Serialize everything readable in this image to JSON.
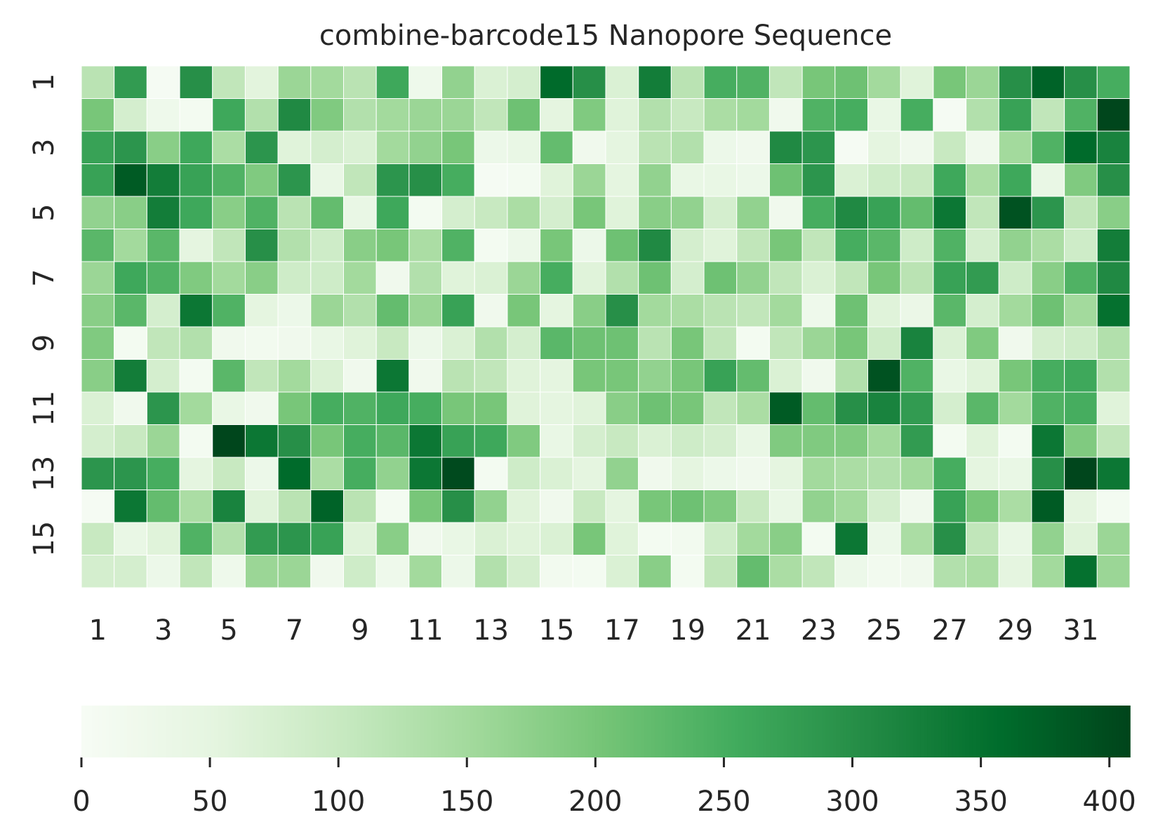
{
  "chart_data": {
    "type": "heatmap",
    "title": "combine-barcode15 Nanopore Sequence",
    "xlabel": "",
    "ylabel": "",
    "colormap": "Greens",
    "color_low": "#f7fcf5",
    "color_high": "#00441b",
    "vmin": 0,
    "vmax": 408,
    "x_categories": [
      1,
      2,
      3,
      4,
      5,
      6,
      7,
      8,
      9,
      10,
      11,
      12,
      13,
      14,
      15,
      16,
      17,
      18,
      19,
      20,
      21,
      22,
      23,
      24,
      25,
      26,
      27,
      28,
      29,
      30,
      31,
      32
    ],
    "x_tick_labels": [
      "1",
      "3",
      "5",
      "7",
      "9",
      "11",
      "13",
      "15",
      "17",
      "19",
      "21",
      "23",
      "25",
      "27",
      "29",
      "31"
    ],
    "y_categories": [
      1,
      2,
      3,
      4,
      5,
      6,
      7,
      8,
      9,
      10,
      11,
      12,
      13,
      14,
      15,
      16
    ],
    "y_tick_labels": [
      "1",
      "3",
      "5",
      "7",
      "9",
      "11",
      "13",
      "15"
    ],
    "colorbar": {
      "position": "bottom",
      "ticks": [
        "0",
        "50",
        "100",
        "150",
        "200",
        "250",
        "300",
        "350",
        "400"
      ]
    },
    "values": [
      [
        120,
        280,
        5,
        300,
        110,
        55,
        160,
        150,
        120,
        260,
        25,
        170,
        70,
        80,
        360,
        300,
        70,
        330,
        120,
        250,
        240,
        110,
        200,
        210,
        150,
        60,
        200,
        160,
        300,
        370,
        300,
        250
      ],
      [
        200,
        80,
        25,
        10,
        260,
        130,
        310,
        190,
        130,
        150,
        160,
        160,
        110,
        210,
        50,
        190,
        60,
        130,
        100,
        140,
        150,
        20,
        240,
        250,
        40,
        250,
        5,
        130,
        270,
        110,
        240,
        405
      ],
      [
        270,
        290,
        180,
        260,
        140,
        290,
        60,
        80,
        70,
        150,
        170,
        200,
        30,
        40,
        220,
        20,
        50,
        120,
        130,
        30,
        20,
        310,
        290,
        5,
        50,
        20,
        100,
        20,
        150,
        240,
        360,
        320
      ],
      [
        270,
        380,
        330,
        270,
        240,
        190,
        290,
        40,
        110,
        290,
        300,
        250,
        5,
        10,
        60,
        160,
        50,
        170,
        40,
        40,
        30,
        210,
        290,
        70,
        90,
        100,
        260,
        140,
        260,
        40,
        190,
        300
      ],
      [
        170,
        180,
        330,
        260,
        180,
        240,
        120,
        220,
        40,
        260,
        10,
        80,
        100,
        140,
        80,
        200,
        60,
        180,
        170,
        80,
        170,
        20,
        250,
        310,
        270,
        220,
        340,
        110,
        390,
        290,
        110,
        180
      ],
      [
        230,
        150,
        230,
        50,
        110,
        300,
        130,
        90,
        180,
        200,
        140,
        240,
        10,
        30,
        200,
        30,
        210,
        310,
        80,
        60,
        110,
        200,
        110,
        250,
        230,
        90,
        240,
        80,
        170,
        140,
        90,
        330
      ],
      [
        160,
        260,
        240,
        190,
        150,
        180,
        90,
        90,
        150,
        20,
        130,
        60,
        70,
        160,
        250,
        60,
        130,
        210,
        80,
        210,
        170,
        110,
        70,
        110,
        200,
        120,
        270,
        280,
        90,
        180,
        240,
        310
      ],
      [
        180,
        230,
        80,
        340,
        240,
        50,
        30,
        160,
        130,
        220,
        160,
        270,
        20,
        200,
        50,
        180,
        300,
        150,
        140,
        120,
        110,
        150,
        25,
        210,
        60,
        35,
        230,
        80,
        150,
        210,
        150,
        350
      ],
      [
        190,
        10,
        110,
        130,
        20,
        15,
        20,
        40,
        60,
        100,
        30,
        70,
        130,
        80,
        230,
        210,
        210,
        120,
        200,
        110,
        10,
        110,
        160,
        200,
        90,
        320,
        70,
        190,
        20,
        80,
        90,
        130
      ],
      [
        180,
        330,
        80,
        10,
        230,
        110,
        150,
        70,
        20,
        340,
        20,
        120,
        110,
        60,
        50,
        200,
        200,
        170,
        200,
        270,
        220,
        70,
        20,
        130,
        390,
        240,
        40,
        60,
        200,
        250,
        260,
        130
      ],
      [
        70,
        20,
        290,
        150,
        40,
        20,
        200,
        250,
        240,
        260,
        250,
        200,
        200,
        60,
        50,
        60,
        180,
        210,
        200,
        110,
        140,
        380,
        220,
        300,
        320,
        280,
        80,
        230,
        150,
        240,
        250,
        60
      ],
      [
        80,
        100,
        160,
        10,
        405,
        340,
        300,
        200,
        250,
        230,
        340,
        270,
        260,
        190,
        40,
        80,
        100,
        70,
        90,
        80,
        40,
        190,
        190,
        190,
        150,
        280,
        10,
        60,
        10,
        340,
        190,
        110
      ],
      [
        290,
        290,
        250,
        50,
        100,
        30,
        360,
        140,
        250,
        170,
        340,
        400,
        10,
        90,
        70,
        50,
        170,
        20,
        50,
        30,
        20,
        50,
        150,
        140,
        130,
        150,
        250,
        50,
        40,
        300,
        405,
        340
      ],
      [
        5,
        340,
        220,
        140,
        320,
        60,
        120,
        370,
        120,
        10,
        200,
        300,
        170,
        60,
        20,
        100,
        50,
        200,
        210,
        190,
        100,
        40,
        170,
        150,
        80,
        20,
        270,
        200,
        140,
        380,
        50,
        10
      ],
      [
        100,
        40,
        60,
        240,
        130,
        280,
        290,
        270,
        60,
        180,
        20,
        40,
        70,
        60,
        70,
        200,
        60,
        10,
        15,
        90,
        150,
        180,
        10,
        340,
        30,
        140,
        300,
        110,
        40,
        170,
        60,
        160
      ],
      [
        80,
        80,
        30,
        110,
        25,
        160,
        160,
        20,
        90,
        25,
        150,
        30,
        130,
        80,
        15,
        10,
        70,
        180,
        10,
        110,
        220,
        140,
        110,
        30,
        15,
        20,
        130,
        140,
        50,
        150,
        350,
        160
      ]
    ]
  }
}
